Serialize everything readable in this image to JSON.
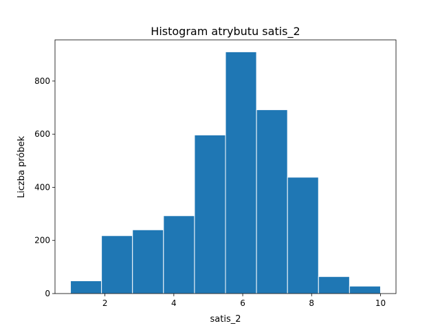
{
  "chart_data": {
    "type": "bar",
    "title": "Histogram atrybutu satis_2",
    "xlabel": "satis_2",
    "ylabel": "Liczba próbek",
    "xlim": [
      0.55,
      10.45
    ],
    "ylim": [
      0,
      955
    ],
    "grid": false,
    "bar_color": "#1f77b4",
    "edge_color": "#ffffff",
    "bins": [
      {
        "x0": 1.0,
        "x1": 1.9,
        "count": 48
      },
      {
        "x0": 1.9,
        "x1": 2.8,
        "count": 218
      },
      {
        "x0": 2.8,
        "x1": 3.7,
        "count": 240
      },
      {
        "x0": 3.7,
        "x1": 4.6,
        "count": 293
      },
      {
        "x0": 4.6,
        "x1": 5.5,
        "count": 597
      },
      {
        "x0": 5.5,
        "x1": 6.4,
        "count": 910
      },
      {
        "x0": 6.4,
        "x1": 7.3,
        "count": 692
      },
      {
        "x0": 7.3,
        "x1": 8.2,
        "count": 438
      },
      {
        "x0": 8.2,
        "x1": 9.1,
        "count": 64
      },
      {
        "x0": 9.1,
        "x1": 10.0,
        "count": 28
      }
    ],
    "x_ticks": [
      2,
      4,
      6,
      8,
      10
    ],
    "y_ticks": [
      0,
      200,
      400,
      600,
      800
    ]
  }
}
